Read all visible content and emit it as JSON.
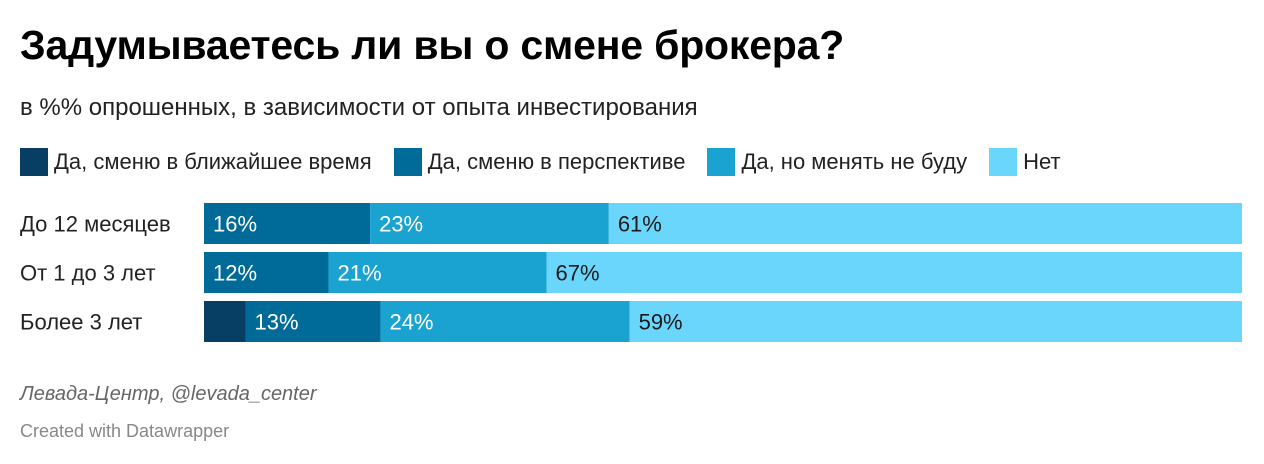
{
  "title": "Задумываетесь ли вы о смене брокера?",
  "subtitle": "в %% опрошенных, в зависимости от опыта инвестирования",
  "source": "Левада-Центр, @levada_center",
  "credit": "Created with Datawrapper",
  "chart_data": {
    "type": "bar",
    "orientation": "horizontal",
    "stacked": true,
    "unit": "%",
    "categories": [
      "До 12 месяцев",
      "От 1 до 3 лет",
      "Более 3 лет"
    ],
    "series": [
      {
        "name": "Да, сменю в ближайшее время",
        "color": "#063f63",
        "values": [
          0,
          0,
          4
        ],
        "labels": [
          "",
          "",
          ""
        ]
      },
      {
        "name": "Да, сменю в перспективе",
        "color": "#006b99",
        "values": [
          16,
          12,
          13
        ],
        "labels": [
          "16%",
          "12%",
          "13%"
        ]
      },
      {
        "name": "Да, но менять не буду",
        "color": "#1aa3d1",
        "values": [
          23,
          21,
          24
        ],
        "labels": [
          "23%",
          "21%",
          "24%"
        ]
      },
      {
        "name": "Нет",
        "color": "#6bd6fb",
        "values": [
          61,
          67,
          59
        ],
        "labels": [
          "61%",
          "67%",
          "59%"
        ]
      }
    ],
    "xlim": [
      0,
      100
    ],
    "grid": false,
    "legend": "top"
  }
}
